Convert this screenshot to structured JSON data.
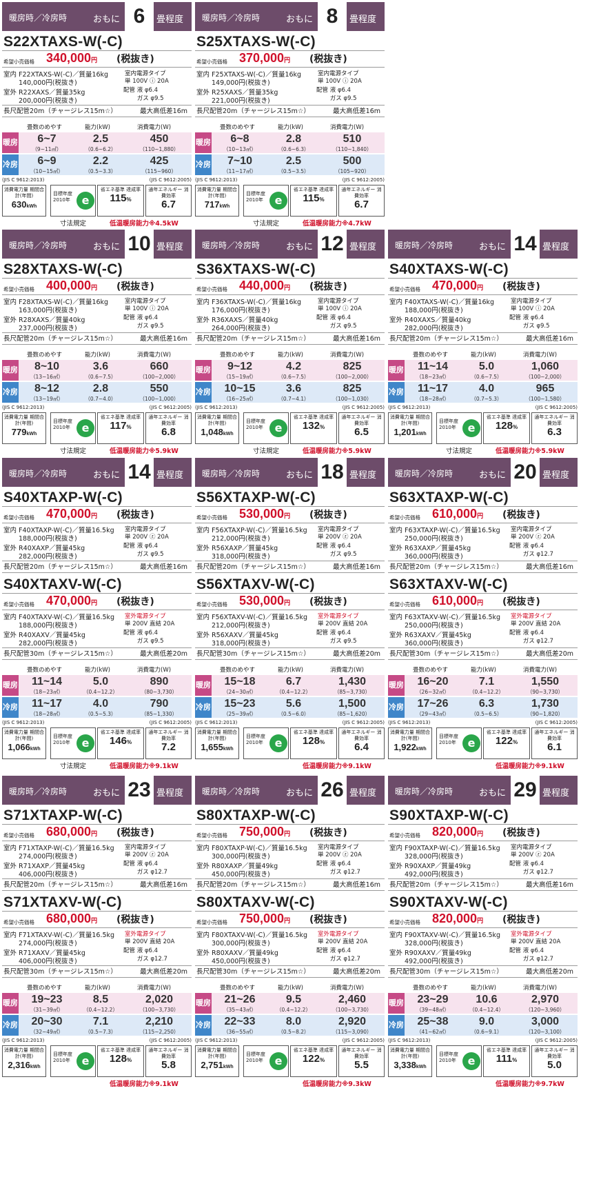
{
  "labels": {
    "header_mode": "暖房時／冷房時",
    "header_omoni": "おもに",
    "header_suffix": "畳程度",
    "price_label": "希望小売価格",
    "price_unit": "円",
    "price_tax": "(税抜き)",
    "indoor": "室内",
    "outdoor": "室外",
    "power_type": "室内電源タイプ",
    "pipe": "配管",
    "col_area": "畳数のめやす",
    "col_capacity": "能力(kW)",
    "col_power": "消費電力(W)",
    "heat": "暖房",
    "cool": "冷房",
    "jis_left": "(JIS C 9612:2013)",
    "jis_right": "(JIS C 9612:2005)",
    "annual_label": "消費電力量 期間合計(年間)",
    "annual_unit": "kWh",
    "target_year_label": "目標年度",
    "target_year": "2010年",
    "energy_logo": "e",
    "achievement_label": "省エネ基準 達成率",
    "achievement_unit": "%",
    "apf_label": "通年エネルギー 消費効率",
    "size_rule": "寸法規定",
    "pipe_prefix": "配管"
  },
  "cards": [
    {
      "tatami": "6",
      "models": [
        {
          "name": "S22XTAXS-W(-C)",
          "price": "340,000",
          "indoor_line": "F22XTAXS-W(-C)／質量16kg",
          "indoor_price": "140,000円(税抜き)",
          "outdoor_line": "R22XAXS／質量35kg",
          "outdoor_price": "200,000円(税抜き)",
          "power_line1": "室内電源タイプ",
          "power_line2": "単 100V ⓘ 20A",
          "power_red": false,
          "pipe_spec": "液 φ6.4\nガス φ9.5",
          "pipe_length": "長尺配管20m（チャージレス15m☆）",
          "height_diff": "最大高低差16m"
        }
      ],
      "heat": {
        "area": "6~7",
        "area_m2": "（9~11㎡）",
        "cap": "2.5",
        "cap_range": "（0.6~6.2）",
        "power": "450",
        "power_range": "（110~1,880）"
      },
      "cool": {
        "area": "6~9",
        "area_m2": "（10~15㎡）",
        "cap": "2.2",
        "cap_range": "（0.5~3.3）",
        "power": "425",
        "power_range": "（115~960）"
      },
      "annual": "630",
      "achievement": "115",
      "apf": "6.7",
      "size_rule": true,
      "low_temp": "低温暖房能力※4.5kW"
    },
    {
      "tatami": "8",
      "models": [
        {
          "name": "S25XTAXS-W(-C)",
          "price": "370,000",
          "indoor_line": "F25XTAXS-W(-C)／質量16kg",
          "indoor_price": "149,000円(税抜き)",
          "outdoor_line": "R25XAXS／質量35kg",
          "outdoor_price": "221,000円(税抜き)",
          "power_line1": "室内電源タイプ",
          "power_line2": "単 100V ⓘ 20A",
          "power_red": false,
          "pipe_spec": "液 φ6.4\nガス φ9.5",
          "pipe_length": "長尺配管20m（チャージレス15m☆）",
          "height_diff": "最大高低差16m"
        }
      ],
      "heat": {
        "area": "6~8",
        "area_m2": "（10~13㎡）",
        "cap": "2.8",
        "cap_range": "（0.6~6.3）",
        "power": "510",
        "power_range": "（110~1,840）"
      },
      "cool": {
        "area": "7~10",
        "area_m2": "（11~17㎡）",
        "cap": "2.5",
        "cap_range": "（0.5~3.5）",
        "power": "500",
        "power_range": "（105~920）"
      },
      "annual": "717",
      "achievement": "115",
      "apf": "6.7",
      "size_rule": true,
      "low_temp": "低温暖房能力※4.7kW"
    },
    {
      "tatami": "10",
      "models": [
        {
          "name": "S28XTAXS-W(-C)",
          "price": "400,000",
          "indoor_line": "F28XTAXS-W(-C)／質量16kg",
          "indoor_price": "163,000円(税抜き)",
          "outdoor_line": "R28XAXS／質量40kg",
          "outdoor_price": "237,000円(税抜き)",
          "power_line1": "室内電源タイプ",
          "power_line2": "単 100V ⓘ 20A",
          "power_red": false,
          "pipe_spec": "液 φ6.4\nガス φ9.5",
          "pipe_length": "長尺配管20m（チャージレス15m☆）",
          "height_diff": "最大高低差16m"
        }
      ],
      "heat": {
        "area": "8~10",
        "area_m2": "（13~16㎡）",
        "cap": "3.6",
        "cap_range": "（0.6~7.5）",
        "power": "660",
        "power_range": "（100~2,000）"
      },
      "cool": {
        "area": "8~12",
        "area_m2": "（13~19㎡）",
        "cap": "2.8",
        "cap_range": "（0.7~4.0）",
        "power": "550",
        "power_range": "（100~1,000）"
      },
      "annual": "779",
      "achievement": "117",
      "apf": "6.8",
      "size_rule": true,
      "low_temp": "低温暖房能力※5.9kW"
    },
    {
      "tatami": "12",
      "models": [
        {
          "name": "S36XTAXS-W(-C)",
          "price": "440,000",
          "indoor_line": "F36XTAXS-W(-C)／質量16kg",
          "indoor_price": "176,000円(税抜き)",
          "outdoor_line": "R36XAXS／質量40kg",
          "outdoor_price": "264,000円(税抜き)",
          "power_line1": "室内電源タイプ",
          "power_line2": "単 100V ⓘ 20A",
          "power_red": false,
          "pipe_spec": "液 φ6.4\nガス φ9.5",
          "pipe_length": "長尺配管20m（チャージレス15m☆）",
          "height_diff": "最大高低差16m"
        }
      ],
      "heat": {
        "area": "9~12",
        "area_m2": "（15~19㎡）",
        "cap": "4.2",
        "cap_range": "（0.6~7.5）",
        "power": "825",
        "power_range": "（100~2,000）"
      },
      "cool": {
        "area": "10~15",
        "area_m2": "（16~25㎡）",
        "cap": "3.6",
        "cap_range": "（0.7~4.1）",
        "power": "825",
        "power_range": "（100~1,030）"
      },
      "annual": "1,048",
      "achievement": "132",
      "apf": "6.5",
      "size_rule": true,
      "low_temp": "低温暖房能力※5.9kW"
    },
    {
      "tatami": "14",
      "models": [
        {
          "name": "S40XTAXS-W(-C)",
          "price": "470,000",
          "indoor_line": "F40XTAXS-W(-C)／質量16kg",
          "indoor_price": "188,000円(税抜き)",
          "outdoor_line": "R40XAXS／質量40kg",
          "outdoor_price": "282,000円(税抜き)",
          "power_line1": "室内電源タイプ",
          "power_line2": "単 100V ⓘ 20A",
          "power_red": false,
          "pipe_spec": "液 φ6.4\nガス φ9.5",
          "pipe_length": "長尺配管20m（チャージレス15m☆）",
          "height_diff": "最大高低差16m"
        }
      ],
      "heat": {
        "area": "11~14",
        "area_m2": "（18~23㎡）",
        "cap": "5.0",
        "cap_range": "（0.6~7.5）",
        "power": "1,060",
        "power_range": "（100~2,000）"
      },
      "cool": {
        "area": "11~17",
        "area_m2": "（18~28㎡）",
        "cap": "4.0",
        "cap_range": "（0.7~5.3）",
        "power": "965",
        "power_range": "（100~1,580）"
      },
      "annual": "1,201",
      "achievement": "128",
      "apf": "6.3",
      "size_rule": true,
      "low_temp": "低温暖房能力※5.9kW"
    },
    {
      "tatami": "14",
      "models": [
        {
          "name": "S40XTAXP-W(-C)",
          "price": "470,000",
          "indoor_line": "F40XTAXP-W(-C)／質量16.5kg",
          "indoor_price": "188,000円(税抜き)",
          "outdoor_line": "R40XAXP／質量45kg",
          "outdoor_price": "282,000円(税抜き)",
          "power_line1": "室内電源タイプ",
          "power_line2": "単 200V ⓩ 20A",
          "power_red": false,
          "pipe_spec": "液 φ6.4\nガス φ9.5",
          "pipe_length": "長尺配管20m（チャージレス15m☆）",
          "height_diff": "最大高低差16m"
        },
        {
          "name": "S40XTAXV-W(-C)",
          "price": "470,000",
          "indoor_line": "F40XTAXV-W(-C)／質量16.5kg",
          "indoor_price": "188,000円(税抜き)",
          "outdoor_line": "R40XAXV／質量45kg",
          "outdoor_price": "282,000円(税抜き)",
          "power_line1": "室外電源タイプ",
          "power_line2": "単 200V 直結 20A",
          "power_red": true,
          "pipe_spec": "液 φ6.4\nガス φ9.5",
          "pipe_length": "長尺配管30m（チャージレス15m☆）",
          "height_diff": "最大高低差20m"
        }
      ],
      "heat": {
        "area": "11~14",
        "area_m2": "（18~23㎡）",
        "cap": "5.0",
        "cap_range": "（0.4~12.2）",
        "power": "890",
        "power_range": "（80~3,730）"
      },
      "cool": {
        "area": "11~17",
        "area_m2": "（18~28㎡）",
        "cap": "4.0",
        "cap_range": "（0.5~5.3）",
        "power": "790",
        "power_range": "（85~1,330）"
      },
      "annual": "1,066",
      "achievement": "146",
      "apf": "7.2",
      "size_rule": true,
      "low_temp": "低温暖房能力※9.1kW"
    },
    {
      "tatami": "18",
      "models": [
        {
          "name": "S56XTAXP-W(-C)",
          "price": "530,000",
          "indoor_line": "F56XTAXP-W(-C)／質量16.5kg",
          "indoor_price": "212,000円(税抜き)",
          "outdoor_line": "R56XAXP／質量45kg",
          "outdoor_price": "318,000円(税抜き)",
          "power_line1": "室内電源タイプ",
          "power_line2": "単 200V ⓩ 20A",
          "power_red": false,
          "pipe_spec": "液 φ6.4\nガス φ9.5",
          "pipe_length": "長尺配管20m（チャージレス15m☆）",
          "height_diff": "最大高低差16m"
        },
        {
          "name": "S56XTAXV-W(-C)",
          "price": "530,000",
          "indoor_line": "F56XTAXV-W(-C)／質量16.5kg",
          "indoor_price": "212,000円(税抜き)",
          "outdoor_line": "R56XAXV／質量45kg",
          "outdoor_price": "318,000円(税抜き)",
          "power_line1": "室外電源タイプ",
          "power_line2": "単 200V 直結 20A",
          "power_red": true,
          "pipe_spec": "液 φ6.4\nガス φ9.5",
          "pipe_length": "長尺配管30m（チャージレス15m☆）",
          "height_diff": "最大高低差20m"
        }
      ],
      "heat": {
        "area": "15~18",
        "area_m2": "（24~30㎡）",
        "cap": "6.7",
        "cap_range": "（0.4~12.2）",
        "power": "1,430",
        "power_range": "（85~3,730）"
      },
      "cool": {
        "area": "15~23",
        "area_m2": "（25~39㎡）",
        "cap": "5.6",
        "cap_range": "（0.5~6.0）",
        "power": "1,500",
        "power_range": "（85~1,620）"
      },
      "annual": "1,655",
      "achievement": "128",
      "apf": "6.4",
      "size_rule": false,
      "low_temp": "低温暖房能力※9.1kW"
    },
    {
      "tatami": "20",
      "models": [
        {
          "name": "S63XTAXP-W(-C)",
          "price": "610,000",
          "indoor_line": "F63XTAXP-W(-C)／質量16.5kg",
          "indoor_price": "250,000円(税抜き)",
          "outdoor_line": "R63XAXP／質量45kg",
          "outdoor_price": "360,000円(税抜き)",
          "power_line1": "室内電源タイプ",
          "power_line2": "単 200V ⓩ 20A",
          "power_red": false,
          "pipe_spec": "液 φ6.4\nガス φ12.7",
          "pipe_length": "長尺配管20m（チャージレス15m☆）",
          "height_diff": "最大高低差16m"
        },
        {
          "name": "S63XTAXV-W(-C)",
          "price": "610,000",
          "indoor_line": "F63XTAXV-W(-C)／質量16.5kg",
          "indoor_price": "250,000円(税抜き)",
          "outdoor_line": "R63XAXV／質量45kg",
          "outdoor_price": "360,000円(税抜き)",
          "power_line1": "室外電源タイプ",
          "power_line2": "単 200V 直結 20A",
          "power_red": true,
          "pipe_spec": "液 φ6.4\nガス φ12.7",
          "pipe_length": "長尺配管30m（チャージレス15m☆）",
          "height_diff": "最大高低差20m"
        }
      ],
      "heat": {
        "area": "16~20",
        "area_m2": "（26~32㎡）",
        "cap": "7.1",
        "cap_range": "（0.4~12.2）",
        "power": "1,550",
        "power_range": "（90~3,730）"
      },
      "cool": {
        "area": "17~26",
        "area_m2": "（29~43㎡）",
        "cap": "6.3",
        "cap_range": "（0.5~6.5）",
        "power": "1,730",
        "power_range": "（90~1,820）"
      },
      "annual": "1,922",
      "achievement": "122",
      "apf": "6.1",
      "size_rule": false,
      "low_temp": "低温暖房能力※9.1kW"
    },
    {
      "tatami": "23",
      "models": [
        {
          "name": "S71XTAXP-W(-C)",
          "price": "680,000",
          "indoor_line": "F71XTAXP-W(-C)／質量16.5kg",
          "indoor_price": "274,000円(税抜き)",
          "outdoor_line": "R71XAXP／質量45kg",
          "outdoor_price": "406,000円(税抜き)",
          "power_line1": "室内電源タイプ",
          "power_line2": "単 200V ⓩ 20A",
          "power_red": false,
          "pipe_spec": "液 φ6.4\nガス φ12.7",
          "pipe_length": "長尺配管20m（チャージレス15m☆）",
          "height_diff": "最大高低差16m"
        },
        {
          "name": "S71XTAXV-W(-C)",
          "price": "680,000",
          "indoor_line": "F71XTAXV-W(-C)／質量16.5kg",
          "indoor_price": "274,000円(税抜き)",
          "outdoor_line": "R71XAXV／質量45kg",
          "outdoor_price": "406,000円(税抜き)",
          "power_line1": "室外電源タイプ",
          "power_line2": "単 200V 直結 20A",
          "power_red": true,
          "pipe_spec": "液 φ6.4\nガス φ12.7",
          "pipe_length": "長尺配管30m（チャージレス15m☆）",
          "height_diff": "最大高低差20m"
        }
      ],
      "heat": {
        "area": "19~23",
        "area_m2": "（31~39㎡）",
        "cap": "8.5",
        "cap_range": "（0.4~12.2）",
        "power": "2,020",
        "power_range": "（100~3,730）"
      },
      "cool": {
        "area": "20~30",
        "area_m2": "（32~49㎡）",
        "cap": "7.1",
        "cap_range": "（0.5~7.3）",
        "power": "2,210",
        "power_range": "（115~2,250）"
      },
      "annual": "2,316",
      "achievement": "128",
      "apf": "5.8",
      "size_rule": false,
      "low_temp": "低温暖房能力※9.1kW"
    },
    {
      "tatami": "26",
      "models": [
        {
          "name": "S80XTAXP-W(-C)",
          "price": "750,000",
          "indoor_line": "F80XTAXP-W(-C)／質量16.5kg",
          "indoor_price": "300,000円(税抜き)",
          "outdoor_line": "R80XAXP／質量49kg",
          "outdoor_price": "450,000円(税抜き)",
          "power_line1": "室内電源タイプ",
          "power_line2": "単 200V ⓩ 20A",
          "power_red": false,
          "pipe_spec": "液 φ6.4\nガス φ12.7",
          "pipe_length": "長尺配管20m（チャージレス15m☆）",
          "height_diff": "最大高低差16m"
        },
        {
          "name": "S80XTAXV-W(-C)",
          "price": "750,000",
          "indoor_line": "F80XTAXV-W(-C)／質量16.5kg",
          "indoor_price": "300,000円(税抜き)",
          "outdoor_line": "R80XAXV／質量49kg",
          "outdoor_price": "450,000円(税抜き)",
          "power_line1": "室外電源タイプ",
          "power_line2": "単 200V 直結 20A",
          "power_red": true,
          "pipe_spec": "液 φ6.4\nガス φ12.7",
          "pipe_length": "長尺配管30m（チャージレス15m☆）",
          "height_diff": "最大高低差20m"
        }
      ],
      "heat": {
        "area": "21~26",
        "area_m2": "（35~43㎡）",
        "cap": "9.5",
        "cap_range": "（0.4~12.2）",
        "power": "2,460",
        "power_range": "（100~3,730）"
      },
      "cool": {
        "area": "22~33",
        "area_m2": "（36~55㎡）",
        "cap": "8.0",
        "cap_range": "（0.5~8.2）",
        "power": "2,920",
        "power_range": "（115~3,090）"
      },
      "annual": "2,751",
      "achievement": "122",
      "apf": "5.5",
      "size_rule": false,
      "low_temp": "低温暖房能力※9.3kW"
    },
    {
      "tatami": "29",
      "models": [
        {
          "name": "S90XTAXP-W(-C)",
          "price": "820,000",
          "indoor_line": "F90XTAXP-W(-C)／質量16.5kg",
          "indoor_price": "328,000円(税抜き)",
          "outdoor_line": "R90XAXP／質量49kg",
          "outdoor_price": "492,000円(税抜き)",
          "power_line1": "室内電源タイプ",
          "power_line2": "単 200V ⓩ 20A",
          "power_red": false,
          "pipe_spec": "液 φ6.4\nガス φ12.7",
          "pipe_length": "長尺配管20m（チャージレス15m☆）",
          "height_diff": "最大高低差16m"
        },
        {
          "name": "S90XTAXV-W(-C)",
          "price": "820,000",
          "indoor_line": "F90XTAXV-W(-C)／質量16.5kg",
          "indoor_price": "328,000円(税抜き)",
          "outdoor_line": "R90XAXV／質量49kg",
          "outdoor_price": "492,000円(税抜き)",
          "power_line1": "室外電源タイプ",
          "power_line2": "単 200V 直結 20A",
          "power_red": true,
          "pipe_spec": "液 φ6.4\nガス φ12.7",
          "pipe_length": "長尺配管30m（チャージレス15m☆）",
          "height_diff": "最大高低差20m"
        }
      ],
      "heat": {
        "area": "23~29",
        "area_m2": "（39~48㎡）",
        "cap": "10.6",
        "cap_range": "（0.4~12.4）",
        "power": "2,970",
        "power_range": "（120~3,960）"
      },
      "cool": {
        "area": "25~38",
        "area_m2": "（41~62㎡）",
        "cap": "9.0",
        "cap_range": "（0.6~9.1）",
        "power": "3,000",
        "power_range": "（120~3,100）"
      },
      "annual": "3,338",
      "achievement": "111",
      "apf": "5.0",
      "size_rule": false,
      "low_temp": "低温暖房能力※9.7kW"
    }
  ]
}
